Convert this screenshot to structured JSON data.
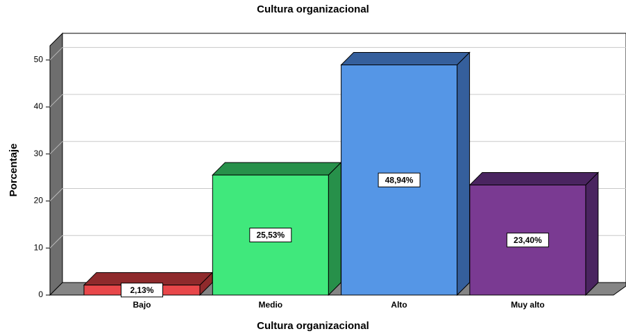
{
  "chart_data": {
    "type": "bar3d",
    "title": "Cultura organizacional",
    "x_label": "Cultura organizacional",
    "y_label": "Porcentaje",
    "categories": [
      "Bajo",
      "Medio",
      "Alto",
      "Muy alto"
    ],
    "values": [
      2.13,
      25.53,
      48.94,
      23.4
    ],
    "value_labels": [
      "2,13%",
      "25,53%",
      "48,94%",
      "23,40%"
    ],
    "colors": [
      "#e8474a",
      "#40e87c",
      "#5596e6",
      "#7a3a92"
    ],
    "side_colors": [
      "#8f2a2c",
      "#27904a",
      "#355f9c",
      "#4a2460"
    ],
    "ylim": [
      0,
      53
    ],
    "yticks": [
      0,
      10,
      20,
      30,
      40,
      50
    ],
    "grid": true
  }
}
